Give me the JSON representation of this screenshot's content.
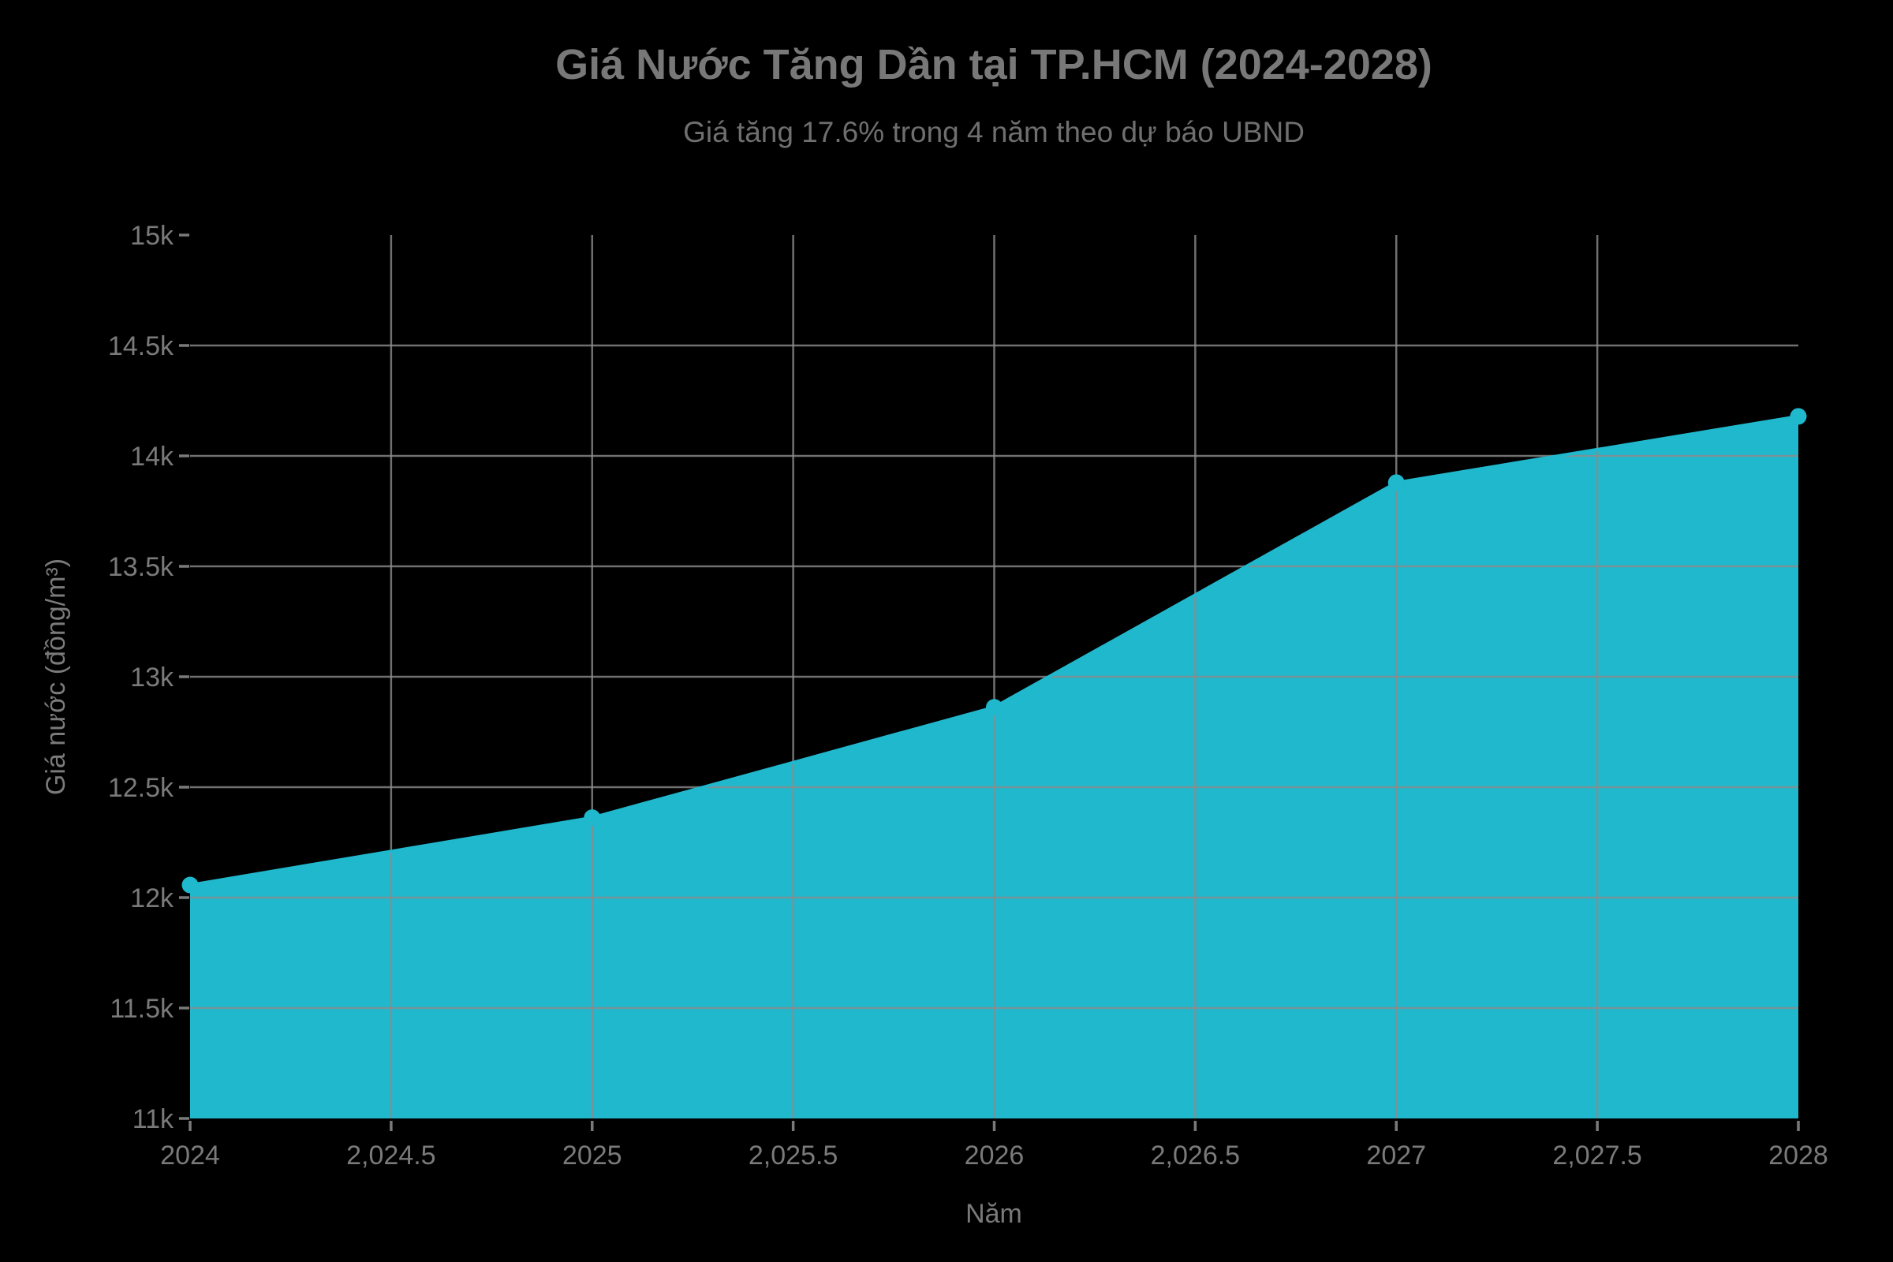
{
  "chart_data": {
    "type": "area",
    "title": "Giá Nước Tăng Dần tại TP.HCM (2024-2028)",
    "subtitle": "Giá tăng 17.6% trong 4 năm theo dự báo UBND",
    "xlabel": "Năm",
    "ylabel": "Giá nước (đồng/m³)",
    "x": [
      2024,
      2025,
      2026,
      2027,
      2028
    ],
    "y": [
      12057,
      12362,
      12862,
      13879,
      14179
    ],
    "series_name": "Giá nước",
    "xlim": [
      2024,
      2028
    ],
    "ylim": [
      11000,
      15000
    ],
    "fill_base": 11000,
    "grid": true,
    "legend": false,
    "x_ticks": [
      {
        "value": 2024,
        "label": "2024"
      },
      {
        "value": 2024.5,
        "label": "2,024.5"
      },
      {
        "value": 2025,
        "label": "2025"
      },
      {
        "value": 2025.5,
        "label": "2,025.5"
      },
      {
        "value": 2026,
        "label": "2026"
      },
      {
        "value": 2026.5,
        "label": "2,026.5"
      },
      {
        "value": 2027,
        "label": "2027"
      },
      {
        "value": 2027.5,
        "label": "2,027.5"
      },
      {
        "value": 2028,
        "label": "2028"
      }
    ],
    "y_ticks": [
      {
        "value": 11000,
        "label": "11k"
      },
      {
        "value": 11500,
        "label": "11.5k"
      },
      {
        "value": 12000,
        "label": "12k"
      },
      {
        "value": 12500,
        "label": "12.5k"
      },
      {
        "value": 13000,
        "label": "13k"
      },
      {
        "value": 13500,
        "label": "13.5k"
      },
      {
        "value": 14000,
        "label": "14k"
      },
      {
        "value": 14500,
        "label": "14.5k"
      },
      {
        "value": 15000,
        "label": "15k"
      }
    ],
    "colors": {
      "background": "#000000",
      "area_fill": "#1fb8cd",
      "line": "#1fb8cd",
      "marker": "#1fb8cd",
      "grid": "#8c8c8c",
      "title_text": "#787878",
      "subtitle_text": "#6f6f6f",
      "tick_text": "#7a7a7a",
      "axis_title_text": "#7a7a7a"
    }
  }
}
